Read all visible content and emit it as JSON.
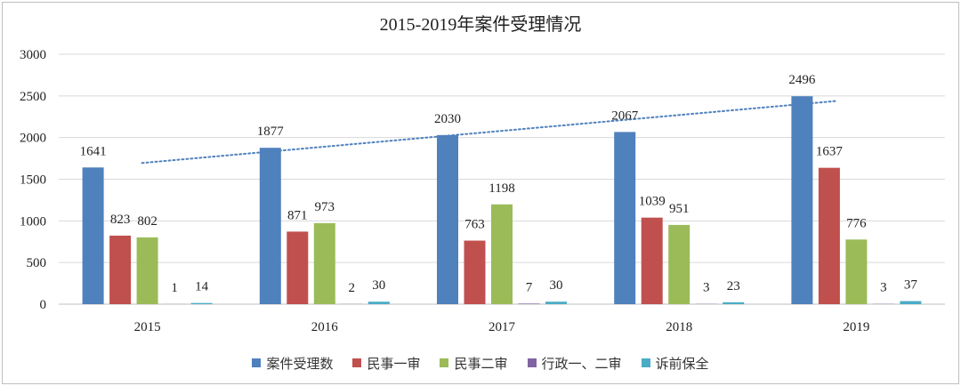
{
  "chart_data": {
    "type": "bar",
    "title": "2015-2019年案件受理情况",
    "categories": [
      "2015",
      "2016",
      "2017",
      "2018",
      "2019"
    ],
    "ylim": [
      0,
      3000
    ],
    "yticks": [
      "0",
      "500",
      "1000",
      "1500",
      "2000",
      "2500",
      "3000"
    ],
    "grid": true,
    "legend_position": "bottom",
    "series": [
      {
        "name": "案件受理数",
        "color": "#4f81bd",
        "values": [
          1641,
          1877,
          2030,
          2067,
          2496
        ],
        "labels": [
          "1641",
          "1877",
          "2030",
          "2067",
          "2496"
        ]
      },
      {
        "name": "民事一审",
        "color": "#c0504d",
        "values": [
          823,
          871,
          763,
          1039,
          1637
        ],
        "labels": [
          "823",
          "871",
          "763",
          "1039",
          "1637"
        ]
      },
      {
        "name": "民事二审",
        "color": "#9bbb59",
        "values": [
          802,
          973,
          1198,
          951,
          776
        ],
        "labels": [
          "802",
          "973",
          "1198",
          "951",
          "776"
        ]
      },
      {
        "name": "行政一、二审",
        "color": "#8064a2",
        "values": [
          1,
          2,
          7,
          3,
          3
        ],
        "labels": [
          "1",
          "2",
          "7",
          "3",
          "3"
        ]
      },
      {
        "name": "诉前保全",
        "color": "#4bacc6",
        "values": [
          14,
          30,
          30,
          23,
          37
        ],
        "labels": [
          "14",
          "30",
          "30",
          "23",
          "37"
        ]
      }
    ],
    "trendline": {
      "series": "案件受理数",
      "type": "linear",
      "style": "dotted",
      "color": "#4f81bd"
    }
  }
}
